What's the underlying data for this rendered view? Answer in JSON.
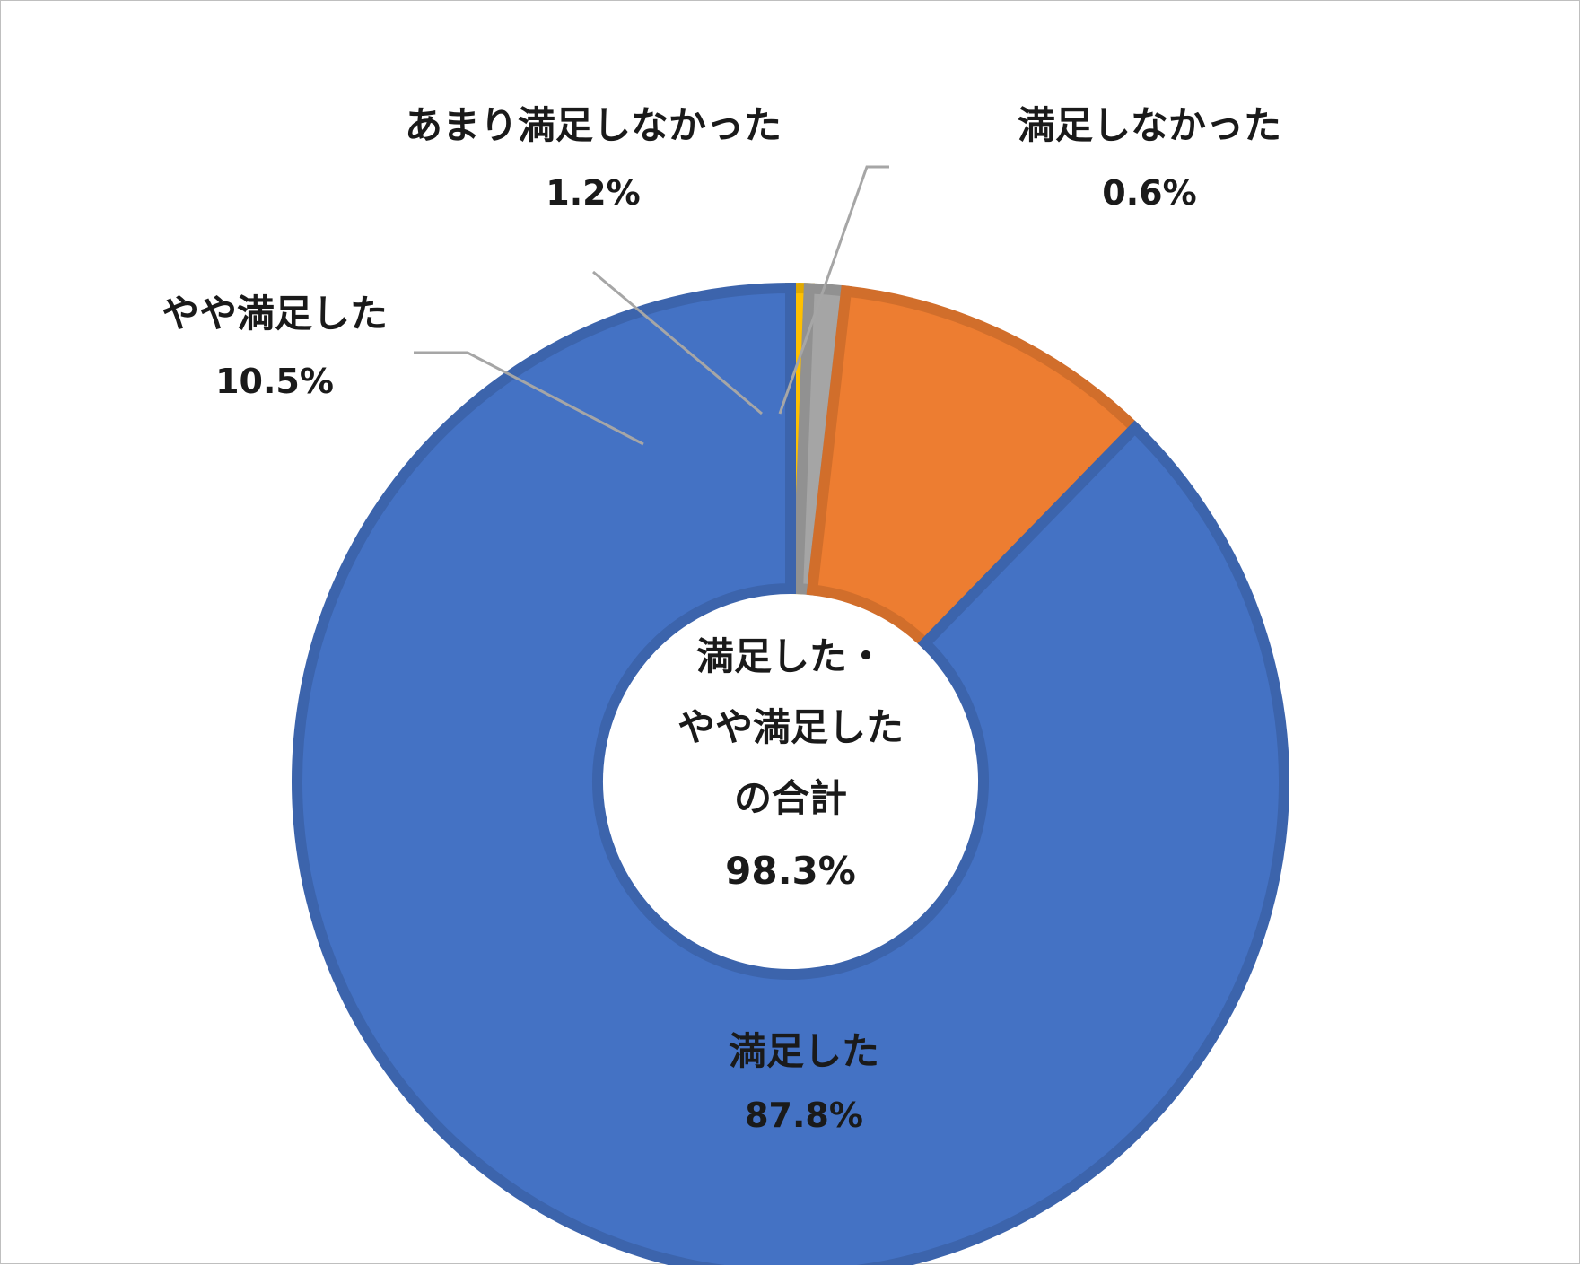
{
  "chart_data": {
    "type": "pie",
    "donut": true,
    "categories": [
      "満足した",
      "やや満足した",
      "あまり満足しなかった",
      "満足しなかった"
    ],
    "values": [
      87.8,
      10.5,
      1.2,
      0.6
    ],
    "value_labels": [
      "87.8%",
      "10.5%",
      "1.2%",
      "0.6%"
    ],
    "colors": [
      "#4472c4",
      "#ed7d31",
      "#a5a5a5",
      "#ffc000"
    ],
    "center_text": {
      "line1": "満足した・",
      "line2": "やや満足した",
      "line3": "の合計",
      "value": "98.3%"
    },
    "legend": "none"
  }
}
